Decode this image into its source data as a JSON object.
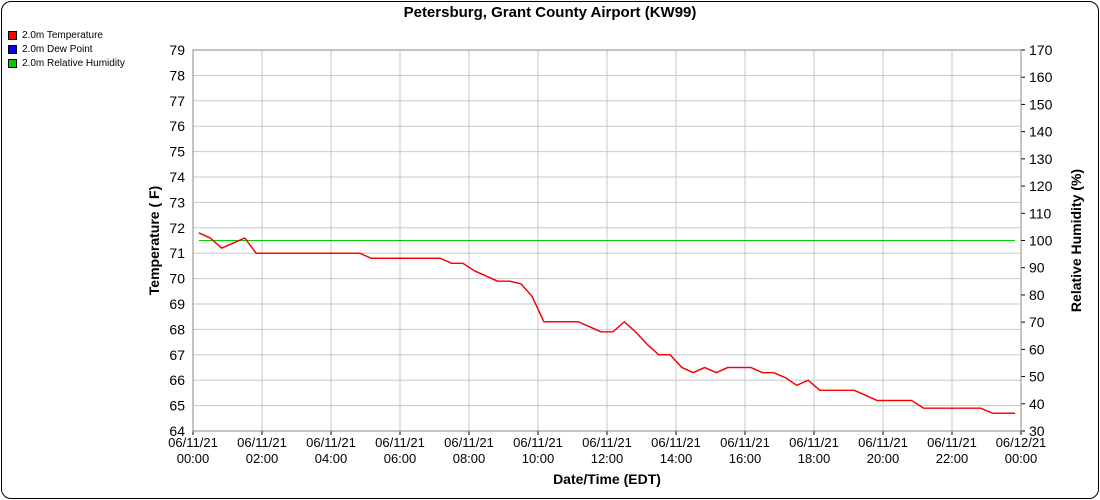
{
  "chart_data": {
    "type": "line",
    "title": "Petersburg, Grant County Airport (KW99)",
    "xlabel": "Date/Time (EDT)",
    "ylabel": "Temperature ( F)",
    "y2label": "Relative Humidity (%)",
    "ylim": [
      64,
      79
    ],
    "y2lim": [
      30,
      170
    ],
    "xlim_hours": [
      0,
      24
    ],
    "x_ticks": [
      {
        "date": "06/11/21",
        "time": "00:00"
      },
      {
        "date": "06/11/21",
        "time": "02:00"
      },
      {
        "date": "06/11/21",
        "time": "04:00"
      },
      {
        "date": "06/11/21",
        "time": "06:00"
      },
      {
        "date": "06/11/21",
        "time": "08:00"
      },
      {
        "date": "06/11/21",
        "time": "10:00"
      },
      {
        "date": "06/11/21",
        "time": "12:00"
      },
      {
        "date": "06/11/21",
        "time": "14:00"
      },
      {
        "date": "06/11/21",
        "time": "16:00"
      },
      {
        "date": "06/11/21",
        "time": "18:00"
      },
      {
        "date": "06/11/21",
        "time": "20:00"
      },
      {
        "date": "06/11/21",
        "time": "22:00"
      },
      {
        "date": "06/12/21",
        "time": "00:00"
      }
    ],
    "y_ticks": [
      "64",
      "65",
      "66",
      "67",
      "68",
      "69",
      "70",
      "71",
      "72",
      "73",
      "74",
      "75",
      "76",
      "77",
      "78",
      "79"
    ],
    "y2_ticks": [
      "30",
      "40",
      "50",
      "60",
      "70",
      "80",
      "90",
      "100",
      "110",
      "120",
      "130",
      "140",
      "150",
      "160",
      "170"
    ],
    "grid": true,
    "legend_position": "top-left",
    "series": [
      {
        "name": "2.0m Temperature",
        "color": "#ff0000",
        "axis": "left",
        "x": [
          0.17,
          0.5,
          0.83,
          1.17,
          1.5,
          1.83,
          2.17,
          2.5,
          2.83,
          3.17,
          3.5,
          3.83,
          4.17,
          4.5,
          4.83,
          5.17,
          5.5,
          5.83,
          6.17,
          6.5,
          6.83,
          7.17,
          7.5,
          7.83,
          8.17,
          8.5,
          8.83,
          9.17,
          9.5,
          9.83,
          10.17,
          10.5,
          10.83,
          11.17,
          11.5,
          11.83,
          12.17,
          12.5,
          12.83,
          13.17,
          13.5,
          13.83,
          14.17,
          14.5,
          14.83,
          15.17,
          15.5,
          15.83,
          16.17,
          16.5,
          16.83,
          17.17,
          17.5,
          17.83,
          18.17,
          18.5,
          18.83,
          19.17,
          19.5,
          19.83,
          20.17,
          20.5,
          20.83,
          21.17,
          21.5,
          21.83,
          22.17,
          22.5,
          22.83,
          23.17,
          23.5,
          23.83
        ],
        "values": [
          71.8,
          71.6,
          71.2,
          71.4,
          71.6,
          71.0,
          71.0,
          71.0,
          71.0,
          71.0,
          71.0,
          71.0,
          71.0,
          71.0,
          71.0,
          70.8,
          70.8,
          70.8,
          70.8,
          70.8,
          70.8,
          70.8,
          70.6,
          70.6,
          70.3,
          70.1,
          69.9,
          69.9,
          69.8,
          69.3,
          68.3,
          68.3,
          68.3,
          68.3,
          68.1,
          67.9,
          67.9,
          68.3,
          67.9,
          67.4,
          67.0,
          67.0,
          66.5,
          66.3,
          66.5,
          66.3,
          66.5,
          66.5,
          66.5,
          66.3,
          66.3,
          66.1,
          65.8,
          66.0,
          65.6,
          65.6,
          65.6,
          65.6,
          65.4,
          65.2,
          65.2,
          65.2,
          65.2,
          64.9,
          64.9,
          64.9,
          64.9,
          64.9,
          64.9,
          64.7,
          64.7,
          64.7
        ]
      },
      {
        "name": "2.0m Dew Point",
        "color": "#0000ff",
        "axis": "left",
        "x": [
          0.17,
          0.5,
          0.83,
          1.17,
          1.5,
          1.83,
          2.17,
          2.5,
          2.83,
          3.17,
          3.5,
          3.83,
          4.17,
          4.5,
          4.83,
          5.17,
          5.5,
          5.83,
          6.17,
          6.5,
          6.83,
          7.17,
          7.5,
          7.83,
          8.17,
          8.5,
          8.83,
          9.17,
          9.5,
          9.83,
          10.17,
          10.5,
          10.83,
          11.17,
          11.5,
          11.83,
          12.17,
          12.5,
          12.83,
          13.17,
          13.5,
          13.83,
          14.17,
          14.5,
          14.83,
          15.17,
          15.5,
          15.83,
          16.17,
          16.5,
          16.83,
          17.17,
          17.5,
          17.83,
          18.17,
          18.5,
          18.83,
          19.17,
          19.5,
          19.83,
          20.17,
          20.5,
          20.83,
          21.17,
          21.5,
          21.83,
          22.17,
          22.5,
          22.83,
          23.17,
          23.5,
          23.83
        ],
        "values": [
          71.8,
          71.6,
          71.2,
          71.4,
          71.6,
          71.0,
          71.0,
          71.0,
          71.0,
          71.0,
          71.0,
          71.0,
          71.0,
          71.0,
          71.0,
          70.8,
          70.8,
          70.8,
          70.8,
          70.8,
          70.8,
          70.8,
          70.6,
          70.6,
          70.3,
          70.1,
          69.9,
          69.9,
          69.8,
          69.3,
          68.3,
          68.3,
          68.3,
          68.3,
          68.1,
          67.9,
          67.9,
          68.3,
          67.9,
          67.4,
          67.0,
          67.0,
          66.5,
          66.3,
          66.5,
          66.3,
          66.5,
          66.5,
          66.5,
          66.3,
          66.3,
          66.1,
          65.8,
          66.0,
          65.6,
          65.6,
          65.6,
          65.6,
          65.4,
          65.2,
          65.2,
          65.2,
          65.2,
          64.9,
          64.9,
          64.9,
          64.9,
          64.9,
          64.9,
          64.7,
          64.7,
          64.7
        ]
      },
      {
        "name": "2.0m Relative Humidity",
        "color": "#00cc00",
        "axis": "right",
        "x": [
          0.17,
          23.83
        ],
        "values": [
          100,
          100
        ]
      }
    ]
  }
}
